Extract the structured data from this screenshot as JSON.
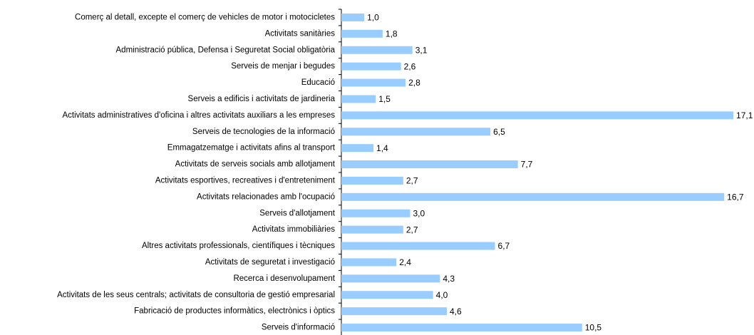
{
  "chart_data": {
    "type": "barh",
    "categories": [
      "Comerç al detall, excepte el comerç de vehicles de motor i motocicletes",
      "Activitats sanitàries",
      "Administració pública, Defensa i Seguretat Social obligatòria",
      "Serveis de menjar i begudes",
      "Educació",
      "Serveis a edificis i activitats de jardineria",
      "Activitats administratives d'oficina i altres activitats auxiliars a les empreses",
      "Serveis de tecnologies de la informació",
      "Emmagatzematge i activitats afins al transport",
      "Activitats de serveis socials amb allotjament",
      "Activitats esportives, recreatives i d'entreteniment",
      "Activitats relacionades amb l'ocupació",
      "Serveis d'allotjament",
      "Activitats immobiliàries",
      "Altres activitats professionals, científiques i tècniques",
      "Activitats de seguretat i investigació",
      "Recerca i desenvolupament",
      "Activitats de les seus centrals; activitats de consultoria de gestió empresarial",
      "Fabricació de productes informàtics, electrònics i òptics",
      "Serveis d'informació"
    ],
    "values": [
      1.0,
      1.8,
      3.1,
      2.6,
      2.8,
      1.5,
      17.1,
      6.5,
      1.4,
      7.7,
      2.7,
      16.7,
      3.0,
      2.7,
      6.7,
      2.4,
      4.3,
      4.0,
      4.6,
      10.5
    ],
    "value_labels": [
      "1,0",
      "1,8",
      "3,1",
      "2,6",
      "2,8",
      "1,5",
      "17,1",
      "6,5",
      "1,4",
      "7,7",
      "2,7",
      "16,7",
      "3,0",
      "2,7",
      "6,7",
      "2,4",
      "4,3",
      "4,0",
      "4,6",
      "10,5"
    ],
    "color": "#99ccff",
    "xlim": [
      0,
      18
    ]
  }
}
